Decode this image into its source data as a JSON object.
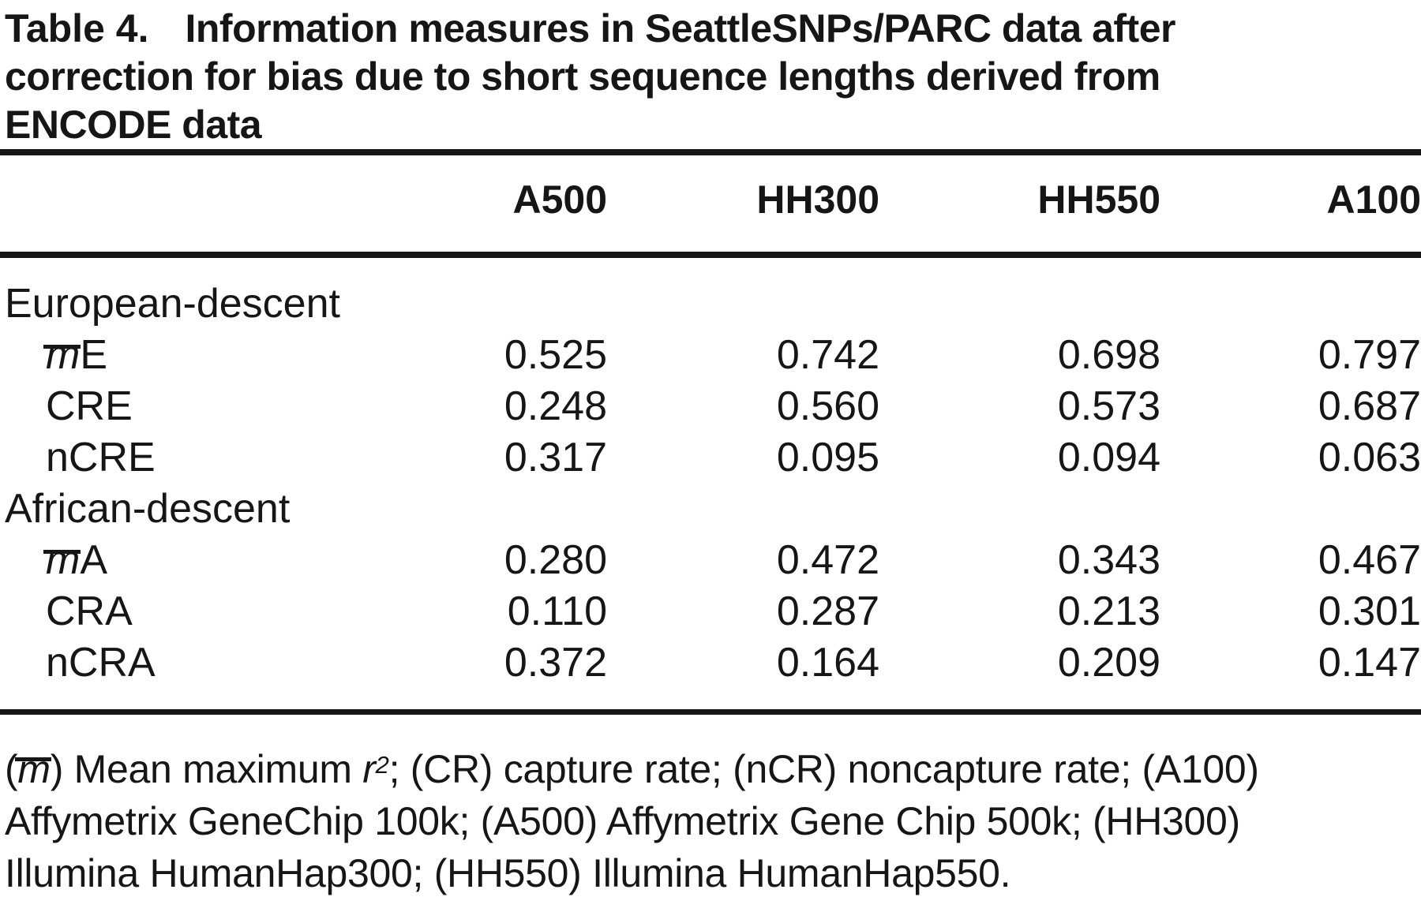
{
  "title": {
    "label": "Table 4.",
    "text": "Information measures in SeattleSNPs/PARC data after\ncorrection for bias due to short sequence lengths derived from\nENCODE data"
  },
  "table": {
    "columns": [
      "A500",
      "HH300",
      "HH550",
      "A100"
    ],
    "rows": [
      {
        "label": "European-descent",
        "type": "section",
        "values": [
          "",
          "",
          "",
          ""
        ]
      },
      {
        "label_bar": "m",
        "label_rest": "E",
        "type": "sub",
        "values": [
          "0.525",
          "0.742",
          "0.698",
          "0.797"
        ]
      },
      {
        "label": "CRE",
        "type": "sub",
        "values": [
          "0.248",
          "0.560",
          "0.573",
          "0.687"
        ]
      },
      {
        "label": "nCRE",
        "type": "sub",
        "values": [
          "0.317",
          "0.095",
          "0.094",
          "0.063"
        ]
      },
      {
        "label": "African-descent",
        "type": "section",
        "values": [
          "",
          "",
          "",
          ""
        ]
      },
      {
        "label_bar": "m",
        "label_rest": "A",
        "type": "sub",
        "values": [
          "0.280",
          "0.472",
          "0.343",
          "0.467"
        ]
      },
      {
        "label": "CRA",
        "type": "sub",
        "values": [
          "0.110",
          "0.287",
          "0.213",
          "0.301"
        ]
      },
      {
        "label": "nCRA",
        "type": "sub",
        "values": [
          "0.372",
          "0.164",
          "0.209",
          "0.147"
        ]
      }
    ]
  },
  "footnote": {
    "l1_open": "(",
    "l1_mbar": "m",
    "l1_mid": ") Mean maximum ",
    "l1_r": "r",
    "l1_sup": "2",
    "l1_rest": "; (CR) capture rate; (nCR) noncapture rate; (A100)",
    "line2": "Affymetrix GeneChip 100k; (A500) Affymetrix Gene Chip 500k; (HH300)",
    "line3": "Illumina HumanHap300; (HH550) Illumina HumanHap550."
  },
  "colors": {
    "text": "#161616",
    "background": "#ffffff",
    "rule": "#161616"
  }
}
